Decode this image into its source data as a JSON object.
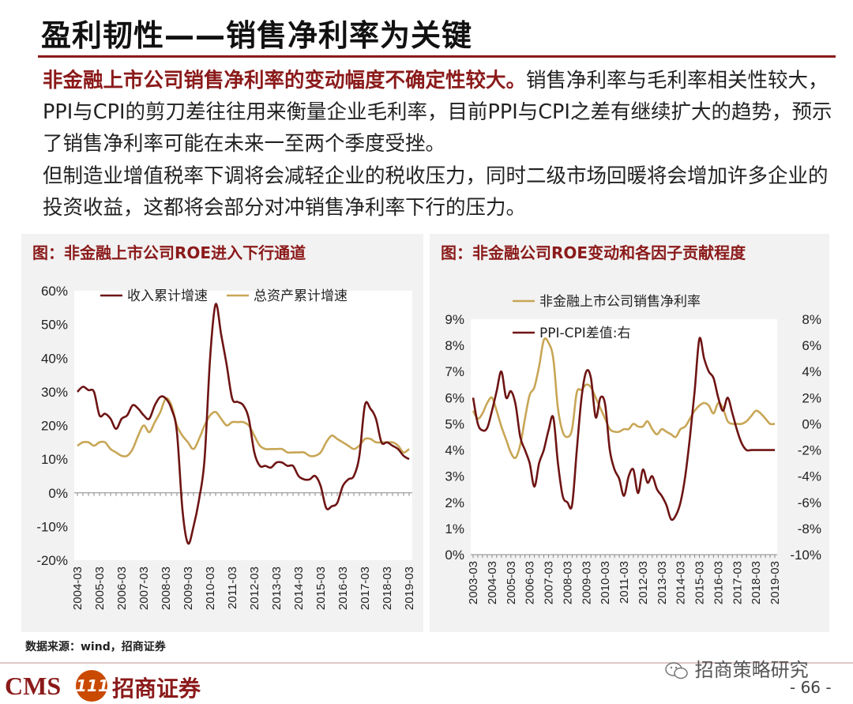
{
  "header": {
    "title": "盈利韧性——销售净利率为关键"
  },
  "body": {
    "para1_bold": "非金融上市公司销售净利率的变动幅度不确定性较大。",
    "para1_rest": "销售净利率与毛利率相关性较大，PPI与CPI的剪刀差往往用来衡量企业毛利率，目前PPI与CPI之差有继续扩大的趋势，预示了销售净利率可能在未来一至两个季度受挫。",
    "para2": "但制造业增值税率下调将会减轻企业的税收压力，同时二级市场回暖将会增加许多企业的投资收益，这都将会部分对冲销售净利率下行的压力。"
  },
  "chart_data": [
    {
      "panel_title": "图：非金融上市公司ROE进入下行通道",
      "type": "line",
      "x": [
        "2004-03",
        "2004-06",
        "2004-09",
        "2004-12",
        "2005-03",
        "2005-06",
        "2005-09",
        "2005-12",
        "2006-03",
        "2006-06",
        "2006-09",
        "2006-12",
        "2007-03",
        "2007-06",
        "2007-09",
        "2007-12",
        "2008-03",
        "2008-06",
        "2008-09",
        "2008-12",
        "2009-03",
        "2009-06",
        "2009-09",
        "2009-12",
        "2010-03",
        "2010-06",
        "2010-09",
        "2010-12",
        "2011-03",
        "2011-06",
        "2011-09",
        "2011-12",
        "2012-03",
        "2012-06",
        "2012-09",
        "2012-12",
        "2013-03",
        "2013-06",
        "2013-09",
        "2013-12",
        "2014-03",
        "2014-06",
        "2014-09",
        "2014-12",
        "2015-03",
        "2015-06",
        "2015-09",
        "2015-12",
        "2016-03",
        "2016-06",
        "2016-09",
        "2016-12",
        "2017-03",
        "2017-06",
        "2017-09",
        "2017-12",
        "2018-03",
        "2018-06",
        "2018-09",
        "2018-12",
        "2019-03"
      ],
      "x_ticks": [
        "2004-03",
        "2005-03",
        "2006-03",
        "2007-03",
        "2008-03",
        "2009-03",
        "2010-03",
        "2011-03",
        "2012-03",
        "2013-03",
        "2014-03",
        "2015-03",
        "2016-03",
        "2017-03",
        "2018-03",
        "2019-03"
      ],
      "ylim": [
        -20,
        60
      ],
      "y_ticks": [
        "60%",
        "50%",
        "40%",
        "30%",
        "20%",
        "10%",
        "0%",
        "-10%",
        "-20%"
      ],
      "series": [
        {
          "name": "收入累计增速",
          "color": "#6e1414",
          "values": [
            30,
            31.5,
            30.5,
            30,
            23,
            23.5,
            22,
            19,
            22,
            23,
            26,
            25,
            23,
            22,
            26,
            28.5,
            28,
            25,
            18,
            -5,
            -15,
            -10,
            -2,
            10,
            40,
            56,
            47,
            38,
            28,
            27,
            26,
            22,
            12,
            8,
            8,
            7.5,
            9,
            9,
            8,
            8,
            5,
            4,
            4,
            5,
            2,
            -4.5,
            -4,
            -3,
            2,
            4,
            5,
            11,
            26,
            25,
            22,
            15,
            15,
            14,
            13,
            11,
            10
          ]
        },
        {
          "name": "总资产累计增速",
          "color": "#c8a656",
          "values": [
            14,
            15,
            15,
            14,
            15,
            15,
            13,
            12,
            11,
            11,
            13,
            17,
            20,
            18,
            21,
            24,
            28,
            26,
            20,
            17,
            15,
            13,
            16,
            20,
            23,
            24,
            22,
            20,
            21,
            21,
            21,
            20,
            17,
            14,
            13,
            13,
            13,
            13,
            12,
            12,
            12,
            12,
            11,
            11,
            12,
            15,
            17,
            16,
            15,
            14,
            13,
            14,
            16,
            16,
            15,
            15,
            15,
            15,
            14,
            12,
            13
          ]
        }
      ]
    },
    {
      "panel_title": "图：非金融公司ROE变动和各因子贡献程度",
      "type": "line",
      "x": [
        "2003-03",
        "2003-06",
        "2003-09",
        "2003-12",
        "2004-03",
        "2004-06",
        "2004-09",
        "2004-12",
        "2005-03",
        "2005-06",
        "2005-09",
        "2005-12",
        "2006-03",
        "2006-06",
        "2006-09",
        "2006-12",
        "2007-03",
        "2007-06",
        "2007-09",
        "2007-12",
        "2008-03",
        "2008-06",
        "2008-09",
        "2008-12",
        "2009-03",
        "2009-06",
        "2009-09",
        "2009-12",
        "2010-03",
        "2010-06",
        "2010-09",
        "2010-12",
        "2011-03",
        "2011-06",
        "2011-09",
        "2011-12",
        "2012-03",
        "2012-06",
        "2012-09",
        "2012-12",
        "2013-03",
        "2013-06",
        "2013-09",
        "2013-12",
        "2014-03",
        "2014-06",
        "2014-09",
        "2014-12",
        "2015-03",
        "2015-06",
        "2015-09",
        "2015-12",
        "2016-03",
        "2016-06",
        "2016-09",
        "2016-12",
        "2017-03",
        "2017-06",
        "2017-09",
        "2017-12",
        "2018-03",
        "2018-06",
        "2018-09",
        "2018-12",
        "2019-03"
      ],
      "x_ticks": [
        "2003-03",
        "2004-03",
        "2005-03",
        "2006-03",
        "2007-03",
        "2008-03",
        "2009-03",
        "2010-03",
        "2011-03",
        "2012-03",
        "2013-03",
        "2014-03",
        "2015-03",
        "2016-03",
        "2017-03",
        "2018-03",
        "2019-03"
      ],
      "ylim_left": [
        0,
        9
      ],
      "ylim_right": [
        -10,
        8
      ],
      "y_ticks_left": [
        "9%",
        "8%",
        "7%",
        "6%",
        "5%",
        "4%",
        "3%",
        "2%",
        "1%",
        "0%"
      ],
      "y_ticks_right": [
        "8%",
        "6%",
        "4%",
        "2%",
        "0%",
        "-2%",
        "-4%",
        "-6%",
        "-8%",
        "-10%"
      ],
      "series": [
        {
          "name": "非金融上市公司销售净利率",
          "axis": "left",
          "color": "#c8a656",
          "values": [
            5.5,
            5.2,
            5.4,
            5.8,
            6.0,
            5.5,
            4.9,
            4.4,
            3.9,
            3.7,
            4.2,
            5.2,
            6.1,
            6.4,
            7.2,
            8.2,
            8.1,
            7.5,
            5.6,
            4.7,
            4.5,
            4.8,
            6.2,
            6.3,
            6.5,
            6.4,
            6.0,
            5.6,
            5.2,
            4.8,
            4.7,
            4.7,
            4.8,
            4.8,
            5.0,
            4.9,
            4.9,
            5.1,
            4.8,
            4.6,
            4.8,
            4.7,
            4.6,
            4.5,
            4.8,
            4.9,
            5.2,
            5.5,
            5.7,
            5.8,
            5.7,
            5.4,
            5.8,
            5.6,
            5.1,
            5.0,
            5.0,
            5.0,
            5.1,
            5.3,
            5.5,
            5.4,
            5.2,
            5.0,
            5.0
          ]
        },
        {
          "name": "PPI-CPI差值:右",
          "axis": "right",
          "color": "#6e1414",
          "values": [
            2,
            0,
            -0.5,
            -0.3,
            1,
            2.5,
            4,
            2,
            2.5,
            1.5,
            -1,
            -2,
            -3,
            -4.8,
            -3,
            -2,
            -0.5,
            0.5,
            -3,
            -5.5,
            -6,
            -6.2,
            -2,
            2,
            4,
            3.5,
            0.5,
            2,
            1.5,
            -2,
            -3.5,
            -4.2,
            -5.5,
            -4,
            -3.5,
            -5.3,
            -3.5,
            -4.5,
            -4,
            -5,
            -5.5,
            -6.2,
            -7.3,
            -7,
            -6,
            -4,
            -1,
            2.5,
            6.5,
            5,
            4,
            3.5,
            2,
            1,
            2,
            0.8,
            -0.5,
            -1.5,
            -2,
            -2,
            -2,
            -2,
            -2,
            -2,
            -2
          ]
        }
      ]
    }
  ],
  "footer": {
    "source": "数据来源：wind，招商证券",
    "brand_en": "CMS",
    "brand_badge": "111",
    "brand_cn": "招商证券",
    "wechat_label": "招商策略研究",
    "page_number": "- 66 -"
  }
}
